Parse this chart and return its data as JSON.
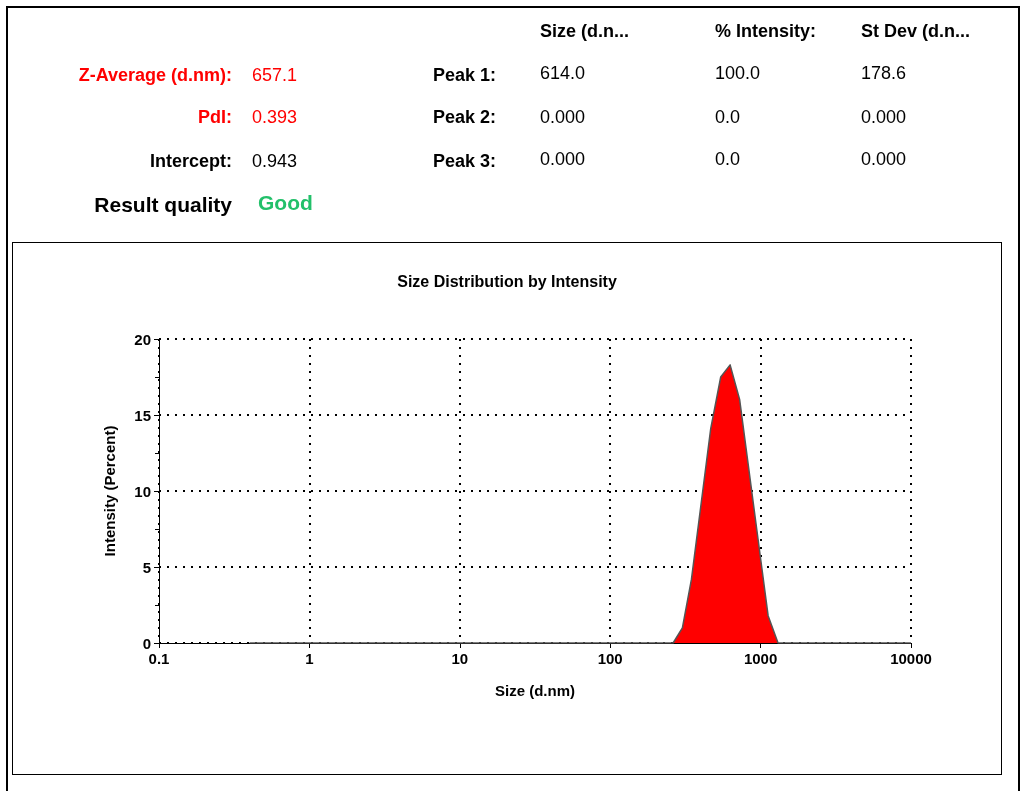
{
  "chart_data": {
    "type": "area",
    "title": "Size Distribution by Intensity",
    "xlabel": "Size (d.nm)",
    "ylabel": "Intensity (Percent)",
    "x": [
      0.4,
      262,
      302,
      347,
      466,
      543,
      627,
      726,
      1122,
      1306,
      10000
    ],
    "values": [
      0,
      0,
      1.0,
      4.2,
      14.1,
      17.5,
      18.3,
      16.0,
      1.8,
      0,
      0
    ],
    "color": "#ff0000",
    "log": "x",
    "xlim": [
      0.1,
      10000
    ],
    "xticks": [
      0.1,
      1,
      10,
      100,
      1000,
      10000
    ],
    "ylim": [
      0,
      20
    ],
    "yticks": [
      0,
      5,
      10,
      15,
      20
    ],
    "grid": true,
    "annotations": [
      "Size (d.n...",
      "% Intensity:",
      "St Dev (d.n...",
      "Z-Average (d.nm):",
      "657.1",
      "Peak 1:",
      "614.0",
      "100.0",
      "178.6",
      "PdI:",
      "0.393",
      "Peak 2:",
      "0.000",
      "0.0",
      "0.000",
      "Intercept:",
      "0.943",
      "Peak 3:",
      "0.000",
      "0.0",
      "0.000",
      "Result quality",
      "Good"
    ]
  }
}
